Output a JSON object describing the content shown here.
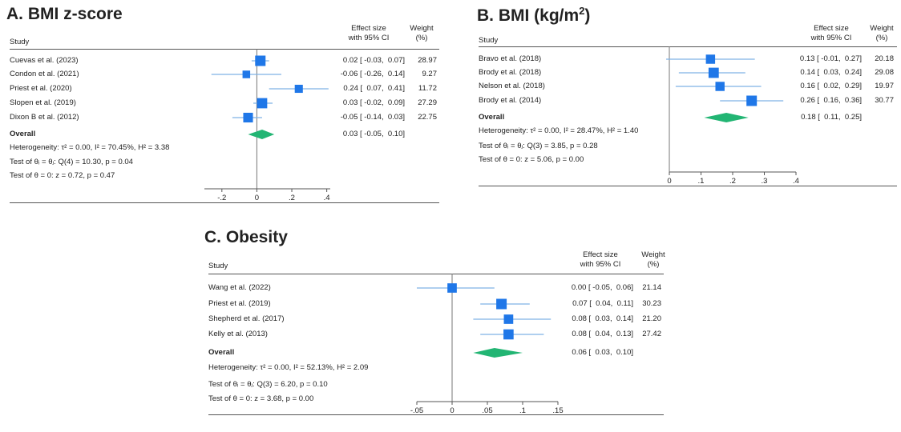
{
  "chart_data": [
    {
      "type": "forest",
      "title_prefix": "A.",
      "title": "BMI z-score",
      "title_sup": "",
      "title_suffix": "",
      "study_header": "Study",
      "effect_header_1": "Effect size",
      "effect_header_2": "with 95% CI",
      "weight_header_1": "Weight",
      "weight_header_2": "(%)",
      "studies": [
        {
          "name": "Cuevas et al. (2023)",
          "es": 0.02,
          "lo": -0.03,
          "hi": 0.07,
          "es_text": "0.02 [ -0.03,  0.07]",
          "weight": 28.97,
          "weight_text": "28.97"
        },
        {
          "name": "Condon et al. (2021)",
          "es": -0.06,
          "lo": -0.26,
          "hi": 0.14,
          "es_text": "-0.06 [ -0.26,  0.14]",
          "weight": 9.27,
          "weight_text": "9.27"
        },
        {
          "name": "Priest et al. (2020)",
          "es": 0.24,
          "lo": 0.07,
          "hi": 0.41,
          "es_text": "0.24 [  0.07,  0.41]",
          "weight": 11.72,
          "weight_text": "11.72"
        },
        {
          "name": "Slopen et al. (2019)",
          "es": 0.03,
          "lo": -0.02,
          "hi": 0.09,
          "es_text": "0.03 [ -0.02,  0.09]",
          "weight": 27.29,
          "weight_text": "27.29"
        },
        {
          "name": "Dixon B et al. (2012)",
          "es": -0.05,
          "lo": -0.14,
          "hi": 0.03,
          "es_text": "-0.05 [ -0.14,  0.03]",
          "weight": 22.75,
          "weight_text": "22.75"
        }
      ],
      "overall": {
        "label": "Overall",
        "es": 0.03,
        "lo": -0.05,
        "hi": 0.1,
        "es_text": "0.03 [ -0.05,  0.10]"
      },
      "heterogeneity": "Heterogeneity: τ² = 0.00, I² = 70.45%, H² = 3.38",
      "test_equal": "Test of θᵢ = θⱼ: Q(4) = 10.30, p = 0.04",
      "test_zero": "Test of θ = 0: z = 0.72, p = 0.47",
      "xlim": [
        -0.3,
        0.42
      ],
      "ticks": [
        -0.2,
        0,
        0.2,
        0.4
      ],
      "tick_labels": [
        "-.2",
        "0",
        ".2",
        ".4"
      ],
      "null_line": 0,
      "colors": {
        "marker": "#1f77e8",
        "ci": "#7fb2e5",
        "diamond": "#22b573"
      }
    },
    {
      "type": "forest",
      "title_prefix": "B.",
      "title": "BMI (kg/m",
      "title_sup": "2",
      "title_suffix": ")",
      "study_header": "Study",
      "effect_header_1": "Effect size",
      "effect_header_2": "with 95% CI",
      "weight_header_1": "Weight",
      "weight_header_2": "(%)",
      "studies": [
        {
          "name": "Bravo et al. (2018)",
          "es": 0.13,
          "lo": -0.01,
          "hi": 0.27,
          "es_text": "0.13 [ -0.01,  0.27]",
          "weight": 20.18,
          "weight_text": "20.18"
        },
        {
          "name": "Brody et al. (2018)",
          "es": 0.14,
          "lo": 0.03,
          "hi": 0.24,
          "es_text": "0.14 [  0.03,  0.24]",
          "weight": 29.08,
          "weight_text": "29.08"
        },
        {
          "name": "Nelson et al.  (2018)",
          "es": 0.16,
          "lo": 0.02,
          "hi": 0.29,
          "es_text": "0.16 [  0.02,  0.29]",
          "weight": 19.97,
          "weight_text": "19.97"
        },
        {
          "name": "Brody et al. (2014)",
          "es": 0.26,
          "lo": 0.16,
          "hi": 0.36,
          "es_text": "0.26 [  0.16,  0.36]",
          "weight": 30.77,
          "weight_text": "30.77"
        }
      ],
      "overall": {
        "label": "Overall",
        "es": 0.18,
        "lo": 0.11,
        "hi": 0.25,
        "es_text": "0.18 [  0.11,  0.25]"
      },
      "heterogeneity": "Heterogeneity: τ² = 0.00, I² = 28.47%, H² = 1.40",
      "test_equal": "Test of θᵢ = θⱼ: Q(3) = 3.85, p = 0.28",
      "test_zero": "Test of θ = 0: z = 5.06, p = 0.00",
      "xlim": [
        0,
        0.4
      ],
      "ticks": [
        0,
        0.1,
        0.2,
        0.3,
        0.4
      ],
      "tick_labels": [
        "0",
        ".1",
        ".2",
        ".3",
        ".4"
      ],
      "null_line": 0,
      "colors": {
        "marker": "#1f77e8",
        "ci": "#7fb2e5",
        "diamond": "#22b573"
      }
    },
    {
      "type": "forest",
      "title_prefix": "C.",
      "title": "Obesity",
      "title_sup": "",
      "title_suffix": "",
      "study_header": "Study",
      "effect_header_1": "Effect size",
      "effect_header_2": "with 95% CI",
      "weight_header_1": "Weight",
      "weight_header_2": "(%)",
      "studies": [
        {
          "name": "Wang et al. (2022)",
          "es": 0.0,
          "lo": -0.05,
          "hi": 0.06,
          "es_text": "0.00 [ -0.05,  0.06]",
          "weight": 21.14,
          "weight_text": "21.14"
        },
        {
          "name": "Priest et al. (2019)",
          "es": 0.07,
          "lo": 0.04,
          "hi": 0.11,
          "es_text": "0.07 [  0.04,  0.11]",
          "weight": 30.23,
          "weight_text": "30.23"
        },
        {
          "name": "Shepherd et al. (2017)",
          "es": 0.08,
          "lo": 0.03,
          "hi": 0.14,
          "es_text": "0.08 [  0.03,  0.14]",
          "weight": 21.2,
          "weight_text": "21.20"
        },
        {
          "name": "Kelly et al. (2013)",
          "es": 0.08,
          "lo": 0.04,
          "hi": 0.13,
          "es_text": "0.08 [  0.04,  0.13]",
          "weight": 27.42,
          "weight_text": "27.42"
        }
      ],
      "overall": {
        "label": "Overall",
        "es": 0.06,
        "lo": 0.03,
        "hi": 0.1,
        "es_text": "0.06 [  0.03,  0.10]"
      },
      "heterogeneity": "Heterogeneity: τ² = 0.00, I² = 52.13%, H² = 2.09",
      "test_equal": "Test of θᵢ = θⱼ: Q(3) = 6.20, p = 0.10",
      "test_zero": "Test of θ = 0: z = 3.68, p = 0.00",
      "xlim": [
        -0.05,
        0.15
      ],
      "ticks": [
        -0.05,
        0,
        0.05,
        0.1,
        0.15
      ],
      "tick_labels": [
        "-.05",
        "0",
        ".05",
        ".1",
        ".15"
      ],
      "null_line": 0,
      "colors": {
        "marker": "#1f77e8",
        "ci": "#7fb2e5",
        "diamond": "#22b573"
      }
    }
  ]
}
